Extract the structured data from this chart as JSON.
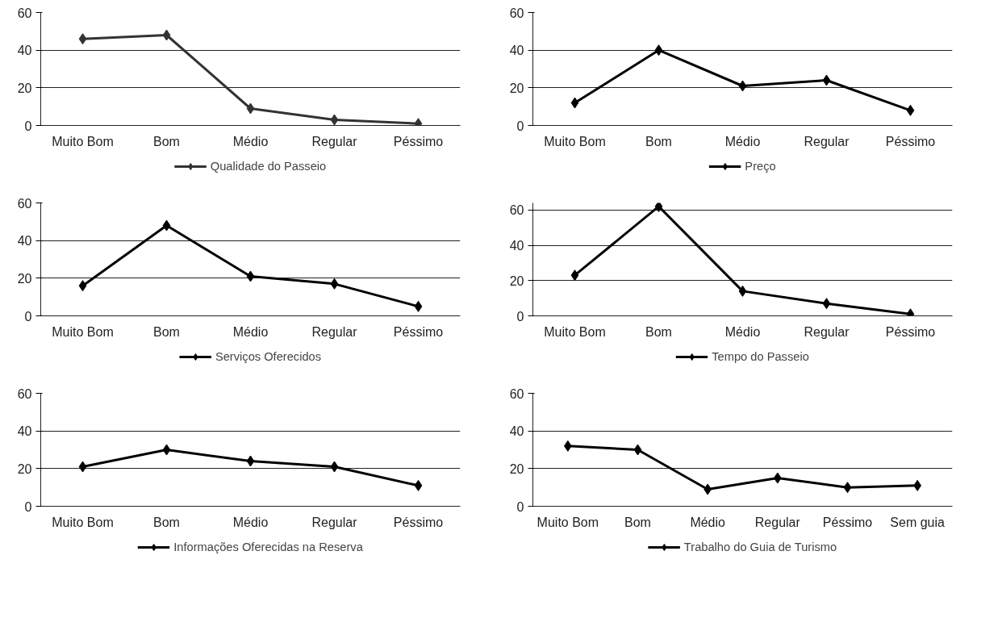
{
  "chart_data": [
    {
      "type": "line",
      "categories": [
        "Muito Bom",
        "Bom",
        "Médio",
        "Regular",
        "Péssimo"
      ],
      "series": [
        {
          "name": "Qualidade do Passeio",
          "color": "#333333",
          "values": [
            46,
            48,
            9,
            3,
            1
          ]
        }
      ],
      "ylim": [
        0,
        60
      ],
      "yticks": [
        0,
        20,
        40,
        60
      ],
      "grid": "y",
      "legend": "bottom",
      "marker": "diamond",
      "line_style": "solid"
    },
    {
      "type": "line",
      "categories": [
        "Muito Bom",
        "Bom",
        "Médio",
        "Regular",
        "Péssimo"
      ],
      "series": [
        {
          "name": "Preço",
          "color": "#000000",
          "values": [
            12,
            40,
            21,
            24,
            8
          ]
        }
      ],
      "ylim": [
        0,
        60
      ],
      "yticks": [
        0,
        20,
        40,
        60
      ],
      "grid": "y",
      "legend": "bottom",
      "marker": "diamond",
      "line_style": "solid"
    },
    {
      "type": "line",
      "categories": [
        "Muito Bom",
        "Bom",
        "Médio",
        "Regular",
        "Péssimo"
      ],
      "series": [
        {
          "name": "Serviços Oferecidos",
          "color": "#000000",
          "values": [
            16,
            48,
            21,
            17,
            5
          ]
        }
      ],
      "ylim": [
        0,
        60
      ],
      "yticks": [
        0,
        20,
        40,
        60
      ],
      "grid": "y",
      "legend": "bottom",
      "marker": "diamond",
      "line_style": "solid"
    },
    {
      "type": "line",
      "categories": [
        "Muito Bom",
        "Bom",
        "Médio",
        "Regular",
        "Péssimo"
      ],
      "series": [
        {
          "name": "Tempo do Passeio",
          "color": "#000000",
          "values": [
            23,
            62,
            14,
            7,
            1
          ]
        }
      ],
      "ylim": [
        0,
        64
      ],
      "yticks": [
        0,
        20,
        40,
        60
      ],
      "grid": "y",
      "legend": "bottom",
      "marker": "diamond",
      "line_style": "solid"
    },
    {
      "type": "line",
      "categories": [
        "Muito Bom",
        "Bom",
        "Médio",
        "Regular",
        "Péssimo"
      ],
      "series": [
        {
          "name": "Informações Oferecidas na Reserva",
          "color": "#000000",
          "values": [
            21,
            30,
            24,
            21,
            11
          ]
        }
      ],
      "ylim": [
        0,
        60
      ],
      "yticks": [
        0,
        20,
        40,
        60
      ],
      "grid": "y",
      "legend": "bottom",
      "marker": "diamond",
      "line_style": "solid"
    },
    {
      "type": "line",
      "categories": [
        "Muito Bom",
        "Bom",
        "Médio",
        "Regular",
        "Péssimo",
        "Sem guia"
      ],
      "series": [
        {
          "name": "Trabalho do Guia de Turismo",
          "color": "#000000",
          "values": [
            32,
            30,
            9,
            15,
            10,
            11
          ]
        }
      ],
      "ylim": [
        0,
        60
      ],
      "yticks": [
        0,
        20,
        40,
        60
      ],
      "grid": "y",
      "legend": "bottom",
      "marker": "diamond",
      "line_style": "solid"
    }
  ]
}
